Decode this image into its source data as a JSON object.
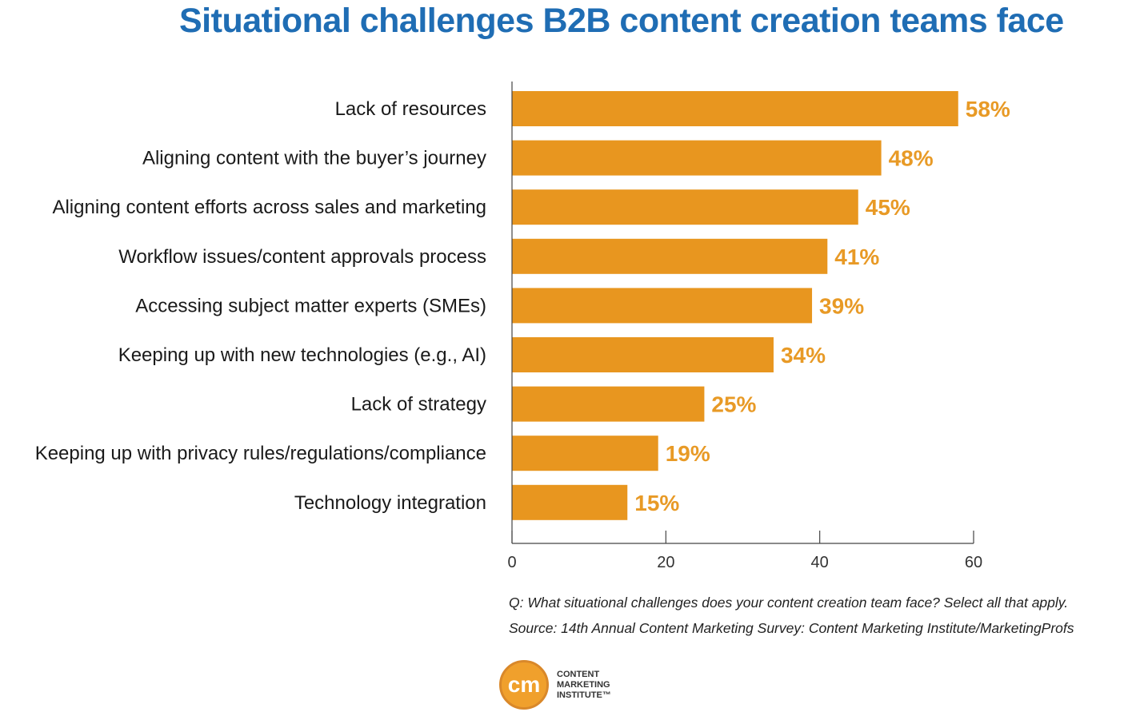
{
  "chart_data": {
    "type": "bar",
    "orientation": "horizontal",
    "title": "Situational challenges B2B content creation teams face",
    "categories": [
      "Lack of resources",
      "Aligning content with the buyer’s journey",
      "Aligning content efforts across sales and marketing",
      "Workflow issues/content approvals process",
      "Accessing subject matter experts (SMEs)",
      "Keeping up with new technologies (e.g., AI)",
      "Lack of strategy",
      "Keeping up with privacy rules/regulations/compliance",
      "Technology integration"
    ],
    "values": [
      58,
      48,
      45,
      41,
      39,
      34,
      25,
      19,
      15
    ],
    "value_labels": [
      "58%",
      "48%",
      "45%",
      "41%",
      "39%",
      "34%",
      "25%",
      "19%",
      "15%"
    ],
    "xlim": [
      0,
      60
    ],
    "xticks": [
      0,
      20,
      40,
      60
    ],
    "grid": false,
    "bar_color": "#e8961f",
    "label_color": "#e89a26"
  },
  "notes": {
    "question": "Q: What situational challenges does your content creation team face? Select all that apply.",
    "source": "Source: 14th Annual Content Marketing Survey: Content Marketing Institute/MarketingProfs"
  },
  "logo": {
    "mark": "cm",
    "line1": "CONTENT",
    "line2": "MARKETING",
    "line3": "INSTITUTE™"
  }
}
